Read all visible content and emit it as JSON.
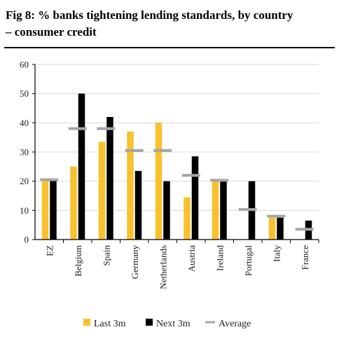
{
  "header": {
    "title_line1": "Fig 8: % banks tightening lending standards, by country",
    "title_line2": "– consumer credit"
  },
  "colors": {
    "last": "#F9C12E",
    "next": "#000000",
    "average": "#A6A6A6",
    "axis": "#000000",
    "grid": "#D9D9D9"
  },
  "chart_data": {
    "type": "bar",
    "title": "Fig 8: % banks tightening lending standards, by country – consumer credit",
    "categories": [
      "EZ",
      "Belgium",
      "Spain",
      "Germany",
      "Netherlands",
      "Austria",
      "Ireland",
      "Portugal",
      "Italy",
      "France"
    ],
    "series": [
      {
        "name": "Last 3m",
        "type": "bar",
        "values": [
          20.5,
          25,
          33.5,
          37,
          40,
          14.5,
          20,
          0,
          7.5,
          0
        ]
      },
      {
        "name": "Next 3m",
        "type": "bar",
        "values": [
          20.5,
          50,
          42,
          23.5,
          20,
          28.5,
          20,
          20,
          7.5,
          6.5
        ]
      },
      {
        "name": "Average",
        "type": "marker",
        "values": [
          20.5,
          38,
          38,
          30.5,
          30.5,
          22,
          20.3,
          10.3,
          8,
          3.5
        ]
      }
    ],
    "yticks": [
      0,
      10,
      20,
      30,
      40,
      50,
      60
    ],
    "ylim": [
      0,
      60
    ],
    "legend_position": "bottom",
    "grid": true
  }
}
